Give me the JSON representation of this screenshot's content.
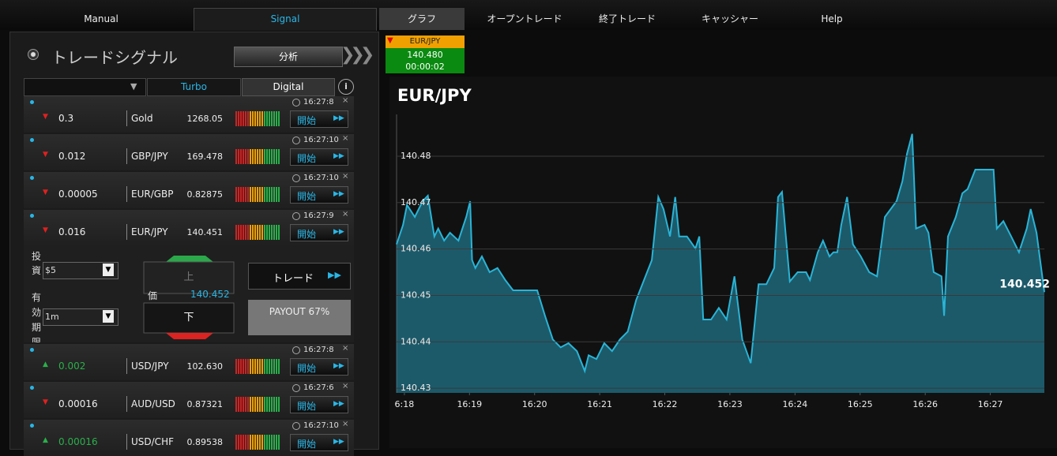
{
  "nav": {
    "tabs": [
      "Manual",
      "Signal",
      "グラフ",
      "オープントレード",
      "終了トレード",
      "キャッシャー",
      "Help"
    ]
  },
  "signal_panel": {
    "title": "トレードシグナル",
    "analyze_button": "分析",
    "filters": [
      "Turbo",
      "Digital"
    ],
    "signals": [
      {
        "change": "0.3",
        "direction": "down",
        "symbol": "Gold",
        "price": "1268.05",
        "time": "16:27:8",
        "action": "開始"
      },
      {
        "change": "0.012",
        "direction": "down",
        "symbol": "GBP/JPY",
        "price": "169.478",
        "time": "16:27:10",
        "action": "開始"
      },
      {
        "change": "0.00005",
        "direction": "down",
        "symbol": "EUR/GBP",
        "price": "0.82875",
        "time": "16:27:10",
        "action": "開始"
      },
      {
        "change": "0.016",
        "direction": "down",
        "symbol": "EUR/JPY",
        "price": "140.451",
        "time": "16:27:9",
        "action": "開始"
      },
      {
        "change": "0.002",
        "direction": "up",
        "symbol": "USD/JPY",
        "price": "102.630",
        "time": "16:27:8",
        "action": "開始"
      },
      {
        "change": "0.00016",
        "direction": "down",
        "symbol": "AUD/USD",
        "price": "0.87321",
        "time": "16:27:6",
        "action": "開始"
      },
      {
        "change": "0.00016",
        "direction": "up",
        "symbol": "USD/CHF",
        "price": "0.89538",
        "time": "16:27:10",
        "action": "開始"
      }
    ]
  },
  "trade_form": {
    "investment_label": "投資",
    "investment": "$5",
    "expiry_label": "有効期限",
    "expiry": "1m",
    "up": "上",
    "price_label": "価",
    "price": "140.452",
    "down": "下",
    "trade_button": "トレード",
    "payout": "PAYOUT 67%"
  },
  "ticker": {
    "symbol": "EUR/JPY",
    "price": "140.480",
    "timer": "00:00:02"
  },
  "chart_data": {
    "type": "area",
    "title": "EUR/JPY",
    "color": "#2ab4d6",
    "grid": true,
    "last_price_label": "140.452",
    "x": [
      17.88,
      17.98,
      18.04,
      18.16,
      18.28,
      18.36,
      18.46,
      18.52,
      18.61,
      18.7,
      18.83,
      18.95,
      19.01,
      19.04,
      19.09,
      19.19,
      19.31,
      19.43,
      19.55,
      19.67,
      20.04,
      20.16,
      20.28,
      20.4,
      20.52,
      20.65,
      20.77,
      20.83,
      20.95,
      21.07,
      21.19,
      21.31,
      21.43,
      21.56,
      21.68,
      21.8,
      21.9,
      21.98,
      22.08,
      22.16,
      22.22,
      22.34,
      22.47,
      22.53,
      22.59,
      22.71,
      22.83,
      22.95,
      23.07,
      23.19,
      23.32,
      23.44,
      23.56,
      23.68,
      23.74,
      23.8,
      23.86,
      23.92,
      24.04,
      24.17,
      24.23,
      24.35,
      24.43,
      24.53,
      24.59,
      24.65,
      24.71,
      24.8,
      24.89,
      25.01,
      25.14,
      25.26,
      25.38,
      25.56,
      25.65,
      25.72,
      25.8,
      25.86,
      25.99,
      26.05,
      26.13,
      26.25,
      26.29,
      26.35,
      26.47,
      26.57,
      26.65,
      26.77,
      27.05,
      27.1,
      27.2,
      27.32,
      27.44,
      27.56,
      27.62,
      27.71,
      27.83
    ],
    "values": [
      140.461,
      140.4652,
      140.4695,
      140.4669,
      140.4703,
      140.4715,
      140.4627,
      140.4644,
      140.4618,
      140.4635,
      140.4618,
      140.4669,
      140.4703,
      140.4576,
      140.4559,
      140.4584,
      140.455,
      140.4559,
      140.4533,
      140.4511,
      140.4511,
      140.4456,
      140.4405,
      140.4388,
      140.4397,
      140.438,
      140.4337,
      140.4371,
      140.4363,
      140.4397,
      140.438,
      140.4405,
      140.4422,
      140.449,
      140.4533,
      140.4576,
      140.4712,
      140.4686,
      140.4627,
      140.4712,
      140.4627,
      140.4627,
      140.4601,
      140.4627,
      140.4448,
      140.4448,
      140.4473,
      140.4448,
      140.4541,
      140.4405,
      140.4354,
      140.4524,
      140.4524,
      140.4559,
      140.4712,
      140.4723,
      140.4627,
      140.453,
      140.455,
      140.455,
      140.4533,
      140.4593,
      140.4618,
      140.4584,
      140.4593,
      140.4593,
      140.4652,
      140.4712,
      140.461,
      140.4584,
      140.455,
      140.4541,
      140.4669,
      140.4703,
      140.4746,
      140.4805,
      140.4848,
      140.4644,
      140.4652,
      140.4635,
      140.455,
      140.4541,
      140.4456,
      140.4627,
      140.4669,
      140.472,
      140.4729,
      140.4771,
      140.4771,
      140.4644,
      140.466,
      140.4627,
      140.4593,
      140.4644,
      140.4686,
      140.4635,
      140.4507
    ],
    "xlim": [
      17.88,
      27.83
    ],
    "ylim": [
      140.429,
      140.489
    ],
    "yticks": [
      140.43,
      140.44,
      140.45,
      140.46,
      140.47,
      140.48
    ],
    "xticks": [
      {
        "value": 18,
        "label": "6:18"
      },
      {
        "value": 19,
        "label": "16:19"
      },
      {
        "value": 20,
        "label": "16:20"
      },
      {
        "value": 21,
        "label": "16:21"
      },
      {
        "value": 22,
        "label": "16:22"
      },
      {
        "value": 23,
        "label": "16:23"
      },
      {
        "value": 24,
        "label": "16:24"
      },
      {
        "value": 25,
        "label": "16:25"
      },
      {
        "value": 26,
        "label": "16:26"
      },
      {
        "value": 27,
        "label": "16:27"
      }
    ]
  }
}
